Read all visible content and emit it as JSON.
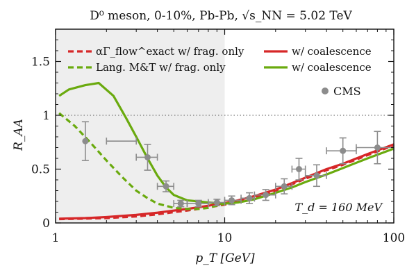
{
  "chart_data": {
    "type": "line",
    "title": "D⁰ meson, 0-10%, Pb-Pb, √s_NN = 5.02 TeV",
    "xlabel": "p_T [GeV]",
    "ylabel": "R_AA",
    "xscale": "log",
    "xlim": [
      1,
      100
    ],
    "ylim": [
      0,
      1.8
    ],
    "x_ticks": [
      1,
      10,
      100
    ],
    "y_ticks": [
      0,
      0.5,
      1,
      1.5
    ],
    "shaded_region": [
      1,
      10
    ],
    "reference_line_y": 1,
    "annotation": "T_d = 160 MeV",
    "legend": [
      {
        "label": "αΓ_flow^exact w/ frag. only",
        "color": "#d62728",
        "style": "dashed"
      },
      {
        "label": "w/ coalescence",
        "color": "#d62728",
        "style": "solid"
      },
      {
        "label": "Lang. M&T w/ frag. only",
        "color": "#6aaa0e",
        "style": "dashed"
      },
      {
        "label": "w/ coalescence",
        "color": "#6aaa0e",
        "style": "solid"
      },
      {
        "label": "CMS",
        "color": "#8c8c8c",
        "style": "marker"
      }
    ],
    "series": [
      {
        "name": "αΓ_flow^exact w/ frag. only",
        "color": "#d62728",
        "style": "dashed",
        "x": [
          1.05,
          1.5,
          2,
          3,
          4,
          5,
          6,
          7,
          8,
          10,
          12,
          15,
          20,
          25,
          30,
          40,
          50,
          70,
          100
        ],
        "y": [
          0.035,
          0.04,
          0.045,
          0.06,
          0.08,
          0.1,
          0.115,
          0.13,
          0.145,
          0.17,
          0.2,
          0.24,
          0.3,
          0.36,
          0.41,
          0.49,
          0.54,
          0.63,
          0.72
        ]
      },
      {
        "name": "w/ coalescence",
        "color": "#d62728",
        "style": "solid",
        "x": [
          1.05,
          1.5,
          2,
          3,
          4,
          5,
          6,
          7,
          8,
          10,
          12,
          15,
          20,
          25,
          30,
          40,
          50,
          70,
          100
        ],
        "y": [
          0.04,
          0.045,
          0.055,
          0.075,
          0.095,
          0.115,
          0.13,
          0.145,
          0.16,
          0.185,
          0.21,
          0.25,
          0.31,
          0.37,
          0.42,
          0.5,
          0.55,
          0.64,
          0.73
        ]
      },
      {
        "name": "Lang. M&T w/ frag. only",
        "color": "#6aaa0e",
        "style": "dashed",
        "x": [
          1.05,
          1.3,
          1.6,
          2,
          2.5,
          3,
          3.5,
          4,
          5,
          6,
          7,
          8,
          9,
          10
        ],
        "y": [
          1.02,
          0.9,
          0.75,
          0.58,
          0.42,
          0.3,
          0.23,
          0.18,
          0.14,
          0.13,
          0.13,
          0.14,
          0.16,
          0.18
        ]
      },
      {
        "name": "w/ coalescence",
        "color": "#6aaa0e",
        "style": "solid",
        "x": [
          1.05,
          1.2,
          1.5,
          1.8,
          2.2,
          2.6,
          3,
          3.5,
          4,
          4.5,
          5,
          6,
          7,
          8,
          10,
          12,
          15,
          20,
          25,
          30,
          40,
          50,
          70,
          100
        ],
        "y": [
          1.18,
          1.24,
          1.28,
          1.3,
          1.18,
          0.98,
          0.8,
          0.6,
          0.44,
          0.33,
          0.26,
          0.21,
          0.2,
          0.19,
          0.18,
          0.19,
          0.22,
          0.28,
          0.33,
          0.38,
          0.45,
          0.51,
          0.6,
          0.69
        ]
      }
    ],
    "cms_points": [
      {
        "x": 1.5,
        "y": 0.76,
        "xerr": [
          2,
          3
        ],
        "yerr": 0.18
      },
      {
        "x": 3.5,
        "y": 0.61,
        "xerr": [
          3,
          4
        ],
        "yerr": 0.12
      },
      {
        "x": 4.5,
        "y": 0.34,
        "xerr": [
          4,
          5
        ],
        "yerr": 0.05
      },
      {
        "x": 5.5,
        "y": 0.18,
        "xerr": [
          5,
          6
        ],
        "yerr": 0.03
      },
      {
        "x": 7,
        "y": 0.18,
        "xerr": [
          6,
          8
        ],
        "yerr": 0.03
      },
      {
        "x": 9,
        "y": 0.19,
        "xerr": [
          8,
          10
        ],
        "yerr": 0.03
      },
      {
        "x": 11,
        "y": 0.21,
        "xerr": [
          10,
          12.5
        ],
        "yerr": 0.04
      },
      {
        "x": 14,
        "y": 0.23,
        "xerr": [
          12.5,
          15
        ],
        "yerr": 0.05
      },
      {
        "x": 17.5,
        "y": 0.26,
        "xerr": [
          15,
          20
        ],
        "yerr": 0.05
      },
      {
        "x": 22.5,
        "y": 0.34,
        "xerr": [
          20,
          25
        ],
        "yerr": 0.07
      },
      {
        "x": 27.5,
        "y": 0.5,
        "xerr": [
          25,
          30
        ],
        "yerr": 0.1
      },
      {
        "x": 35,
        "y": 0.44,
        "xerr": [
          30,
          40
        ],
        "yerr": 0.1
      },
      {
        "x": 50,
        "y": 0.67,
        "xerr": [
          40,
          60
        ],
        "yerr": 0.12
      },
      {
        "x": 80,
        "y": 0.7,
        "xerr": [
          60,
          100
        ],
        "yerr": 0.15
      }
    ]
  }
}
